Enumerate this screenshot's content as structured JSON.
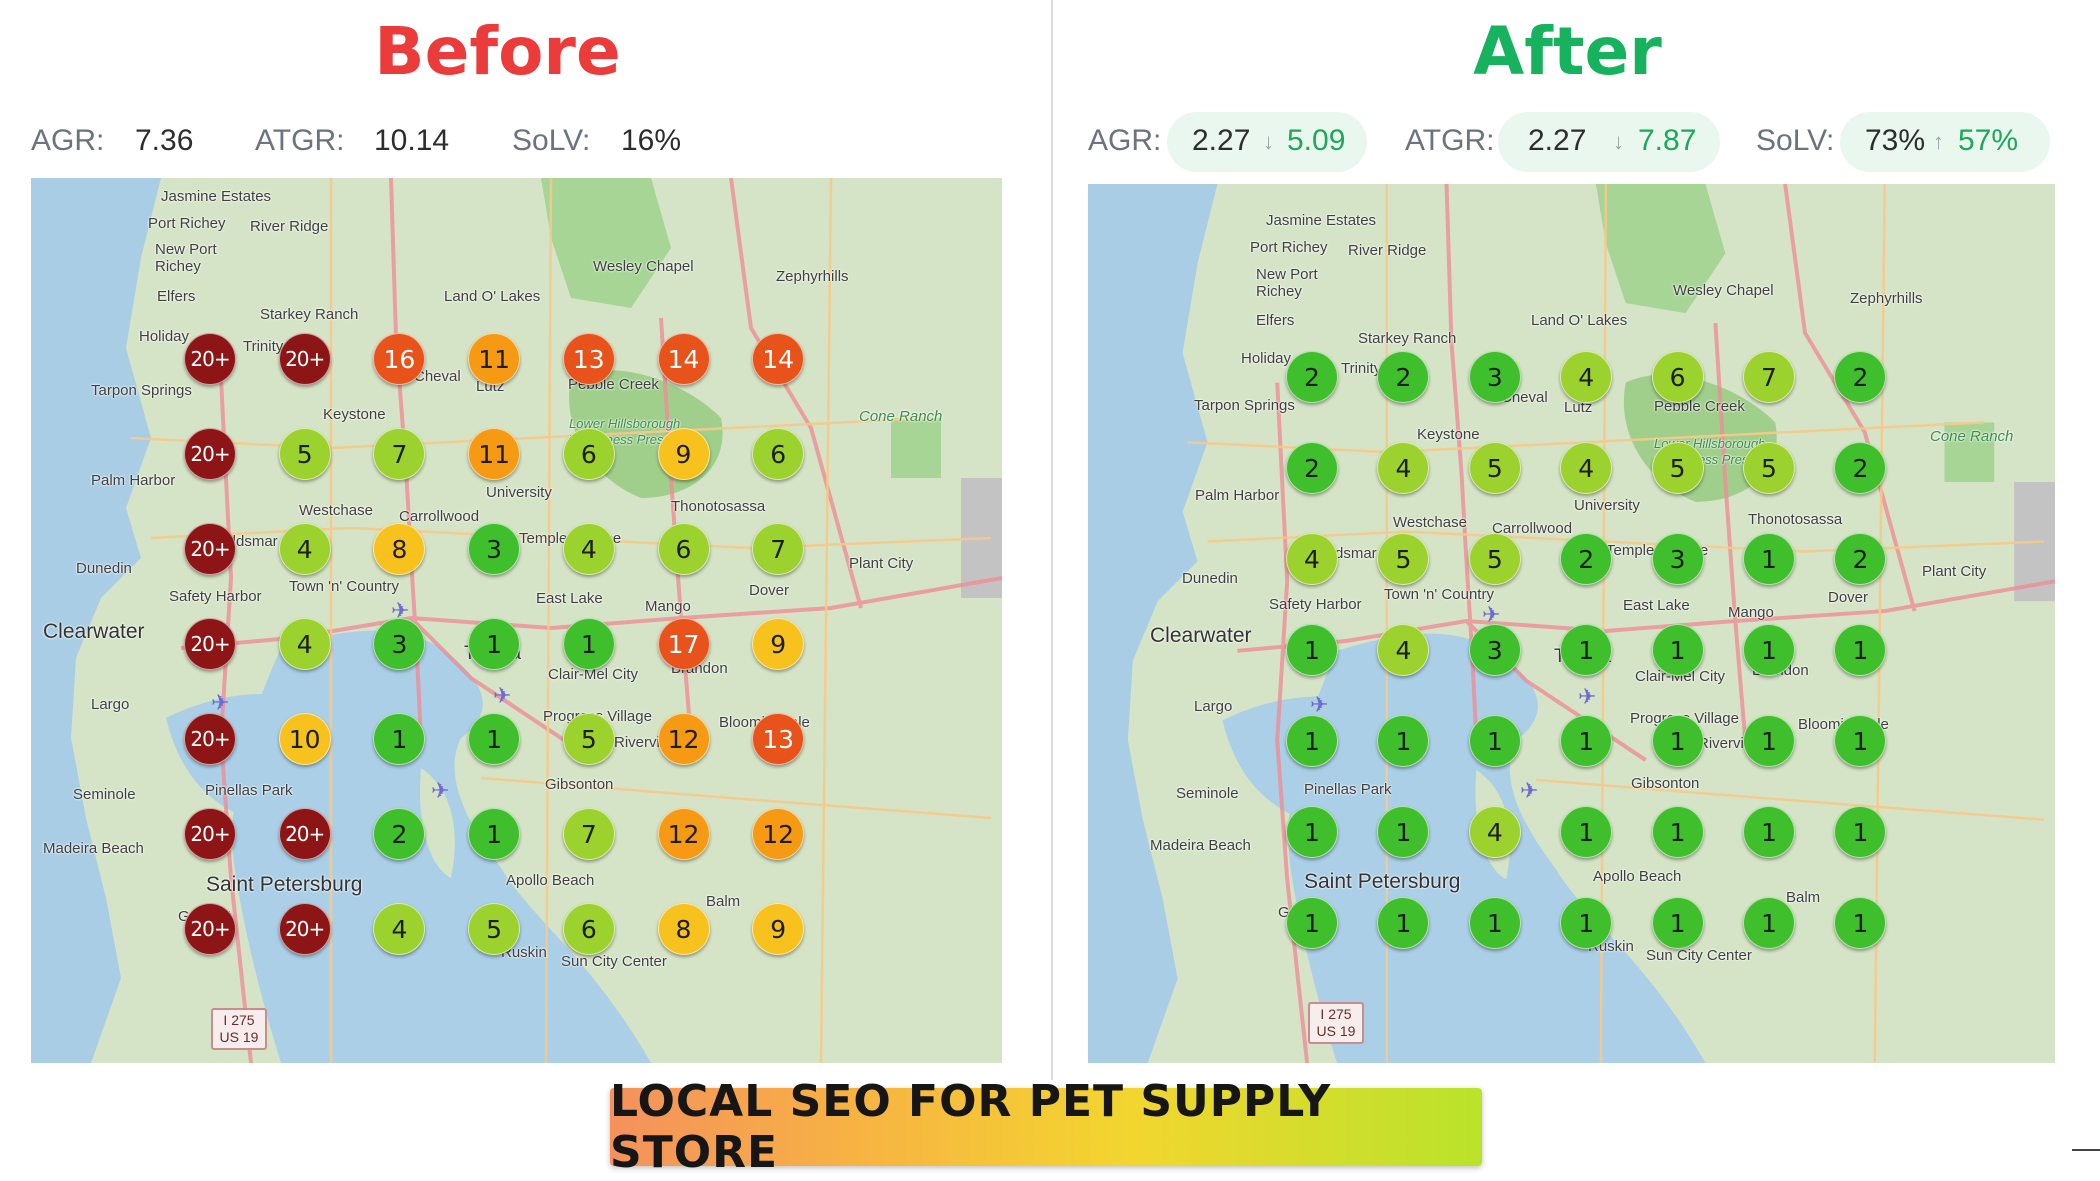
{
  "before": {
    "title": "Before",
    "metrics": [
      {
        "label": "AGR:",
        "value": "7.36"
      },
      {
        "label": "ATGR:",
        "value": "10.14"
      },
      {
        "label": "SoLV:",
        "value": "16%"
      }
    ],
    "grid": [
      [
        "20+",
        "20+",
        "16",
        "11",
        "13",
        "14",
        "14"
      ],
      [
        "20+",
        "5",
        "7",
        "11",
        "6",
        "9",
        "6"
      ],
      [
        "20+",
        "4",
        "8",
        "3",
        "4",
        "6",
        "7"
      ],
      [
        "20+",
        "4",
        "3",
        "1",
        "1",
        "17",
        "9"
      ],
      [
        "20+",
        "10",
        "1",
        "1",
        "5",
        "12",
        "13"
      ],
      [
        "20+",
        "20+",
        "2",
        "1",
        "7",
        "12",
        "12"
      ],
      [
        "20+",
        "20+",
        "4",
        "5",
        "6",
        "8",
        "9"
      ]
    ]
  },
  "after": {
    "title": "After",
    "metrics": [
      {
        "label": "AGR:",
        "old": "2.27",
        "arrow": "↓",
        "new": "5.09"
      },
      {
        "label": "ATGR:",
        "old": "2.27",
        "arrow": "↓",
        "new": "7.87"
      },
      {
        "label": "SoLV:",
        "old": "73%",
        "arrow": "↑",
        "new": "57%"
      }
    ],
    "grid": [
      [
        "2",
        "2",
        "3",
        "4",
        "6",
        "7",
        "2"
      ],
      [
        "2",
        "4",
        "5",
        "4",
        "5",
        "5",
        "2"
      ],
      [
        "4",
        "5",
        "5",
        "2",
        "3",
        "1",
        "2"
      ],
      [
        "1",
        "4",
        "3",
        "1",
        "1",
        "1",
        "1"
      ],
      [
        "1",
        "1",
        "1",
        "1",
        "1",
        "1",
        "1"
      ],
      [
        "1",
        "1",
        "4",
        "1",
        "1",
        "1",
        "1"
      ],
      [
        "1",
        "1",
        "1",
        "1",
        "1",
        "1",
        "1"
      ]
    ]
  },
  "map_labels": [
    "Jasmine Estates",
    "Port Richey",
    "River Ridge",
    "New Port Richey",
    "Elfers",
    "Starkey Ranch",
    "Land O' Lakes",
    "Wesley Chapel",
    "Zephyrhills",
    "Holiday",
    "Trinity",
    "Tarpon Springs",
    "Cheval",
    "Lutz",
    "Pebble Creek",
    "Keystone",
    "Cone Ranch",
    "Lower Hillsborough Wilderness Preserve",
    "Palm Harbor",
    "University",
    "Westchase",
    "Carrollwood",
    "Thonotosassa",
    "Oldsmar",
    "Temple Terrace",
    "Dunedin",
    "Safety Harbor",
    "Town 'n' Country",
    "Plant City",
    "East Lake",
    "Mango",
    "Dover",
    "Clearwater",
    "Tampa",
    "Brandon",
    "Clair-Mel City",
    "Largo",
    "Progress Village",
    "Bloomingdale",
    "Riverview",
    "Seminole",
    "Pinellas Park",
    "Gibsonton",
    "Madeira Beach",
    "Saint Petersburg",
    "Apollo Beach",
    "Balm",
    "Gulfport",
    "Ruskin",
    "Sun City Center"
  ],
  "shield": {
    "line1": "I 275",
    "line2": "US 19"
  },
  "banner": {
    "text": "LOCAL SEO FOR PET SUPPLY STORE"
  },
  "colors": {
    "before_title": "#ec3b3b",
    "after_title": "#17b25e",
    "rank_1_3": "#3fbf2c",
    "rank_4_7": "#9bd22d",
    "rank_8_10": "#f7c21e",
    "rank_11_12": "#f59a12",
    "rank_13_19": "#e8531b",
    "rank_20_plus": "#8e1515"
  }
}
